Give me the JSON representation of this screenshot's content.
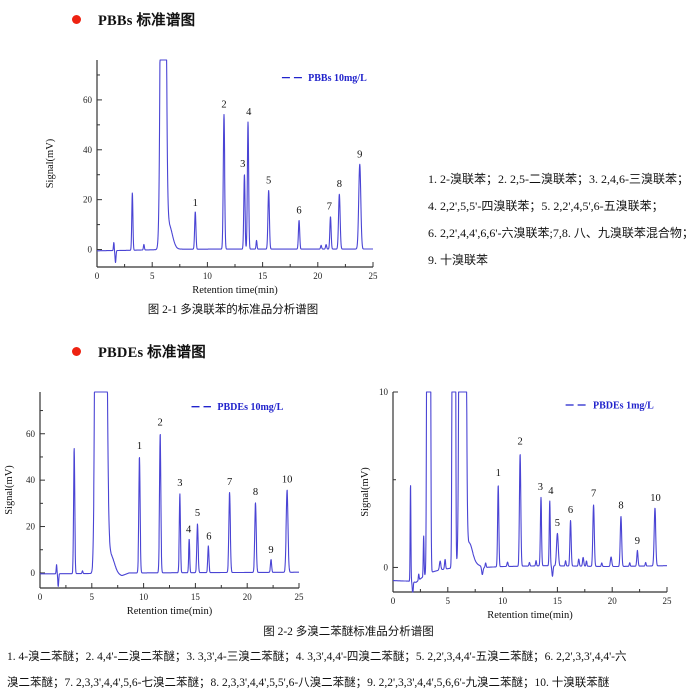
{
  "colors": {
    "bullet": "#ee2211",
    "trace": "#4a44d4",
    "legend_text": "#2123cc",
    "axis": "#333333",
    "tick_text": "#222222",
    "peak_label": "#111111"
  },
  "sections": [
    {
      "title": "PBBs 标准谱图"
    },
    {
      "title": "PBDEs 标准谱图"
    }
  ],
  "annotation": {
    "lines": [
      "1. 2-溴联苯；2. 2,5-二溴联苯；3. 2,4,6-三溴联苯；",
      "4. 2,2',5,5'-四溴联苯；5. 2,2',4,5',6-五溴联苯；",
      "6. 2,2',4,4',6,6'-六溴联苯;7,8. 八、九溴联苯混合物；",
      "9. 十溴联苯"
    ]
  },
  "captions": {
    "fig1": "图 2-1  多溴联苯的标准品分析谱图",
    "fig2": "图 2-2  多溴二苯醚标准品分析谱图"
  },
  "footnote": {
    "lines": [
      "1. 4-溴二苯醚；2. 4,4'-二溴二苯醚；3. 3,3',4-三溴二苯醚；4. 3,3',4,4'-四溴二苯醚；5. 2,2',3,4,4'-五溴二苯醚；6. 2,2',3,3',4,4'-六",
      "溴二苯醚；7. 2,3,3',4,4',5,6-七溴二苯醚；8. 2,3,3',4,4',5,5',6-八溴二苯醚；9. 2,2',3,3',4,4',5,6,6'-九溴二苯醚；10. 十溴联苯醚"
    ]
  },
  "chart_data": [
    {
      "type": "line",
      "legend": "PBBs 10mg/L",
      "xlabel": "Retention time(min)",
      "ylabel": "Signal(mV)",
      "xlim": [
        0,
        25
      ],
      "ylim": [
        -7,
        76
      ],
      "xticks": [
        0,
        5,
        10,
        15,
        20,
        25
      ],
      "yticks": [
        0,
        20,
        40,
        60
      ],
      "x_minor_step": 2.5,
      "y_minor_step": 10,
      "grid": false,
      "legend_position": "top-right-inside",
      "baseline_pts": [
        [
          0,
          -0.5
        ],
        [
          3,
          -0.3
        ],
        [
          7.5,
          0.15
        ],
        [
          25,
          0.2
        ]
      ],
      "peaks": [
        [
          1.52,
          3.2,
          0.05
        ],
        [
          1.68,
          -4.8,
          0.06
        ],
        [
          3.2,
          23,
          0.07
        ],
        [
          4.25,
          2.2,
          0.06
        ],
        [
          6,
          500,
          0.22
        ],
        [
          6.5,
          10,
          0.45
        ],
        [
          8.9,
          15,
          0.08
        ],
        [
          11.5,
          54,
          0.09
        ],
        [
          13.35,
          30,
          0.08
        ],
        [
          13.68,
          51,
          0.08
        ],
        [
          14.45,
          3.5,
          0.06
        ],
        [
          15.55,
          23.5,
          0.09
        ],
        [
          18.3,
          11.5,
          0.08
        ],
        [
          20.3,
          1.5,
          0.07
        ],
        [
          20.75,
          1.8,
          0.07
        ],
        [
          21.15,
          13,
          0.08
        ],
        [
          21.95,
          22,
          0.1
        ],
        [
          23.8,
          34,
          0.13
        ]
      ],
      "peak_labels": [
        [
          "1",
          8.9,
          17.5
        ],
        [
          "2",
          11.5,
          57
        ],
        [
          "3",
          13.2,
          33
        ],
        [
          "4",
          13.75,
          54
        ],
        [
          "5",
          15.55,
          26.5
        ],
        [
          "6",
          18.3,
          14.5
        ],
        [
          "7",
          21.05,
          16
        ],
        [
          "8",
          21.95,
          25
        ],
        [
          "9",
          23.8,
          37
        ]
      ],
      "legend_layout": {
        "dash": [
          0.67,
          0.745
        ],
        "text_x": 0.765,
        "y_frac": 0.085
      }
    },
    {
      "type": "line",
      "legend": "PBDEs 10mg/L",
      "xlabel": "Retention time(min)",
      "ylabel": "Signal(mV)",
      "xlim": [
        0,
        25
      ],
      "ylim": [
        -6.5,
        78
      ],
      "xticks": [
        0,
        5,
        10,
        15,
        20,
        25
      ],
      "yticks": [
        0,
        20,
        40,
        60
      ],
      "x_minor_step": 2.5,
      "y_minor_step": 10,
      "grid": false,
      "legend_position": "top-right-inside",
      "baseline_pts": [
        [
          0,
          -0.4
        ],
        [
          7.2,
          -0.2
        ],
        [
          7.9,
          -1.2
        ],
        [
          8.6,
          0
        ],
        [
          25,
          0.3
        ]
      ],
      "peaks": [
        [
          1.6,
          4,
          0.05
        ],
        [
          1.76,
          -5.5,
          0.06
        ],
        [
          3.3,
          54,
          0.08
        ],
        [
          4.1,
          1.2,
          0.06
        ],
        [
          5.55,
          500,
          0.22
        ],
        [
          6.1,
          500,
          0.3
        ],
        [
          6.8,
          8,
          0.5
        ],
        [
          9.6,
          50,
          0.09
        ],
        [
          11.6,
          60,
          0.09
        ],
        [
          13.5,
          34,
          0.08
        ],
        [
          14.4,
          14.5,
          0.07
        ],
        [
          15.2,
          21,
          0.09
        ],
        [
          16.25,
          11.5,
          0.08
        ],
        [
          18.3,
          34.5,
          0.1
        ],
        [
          20.8,
          30,
          0.1
        ],
        [
          22.3,
          5.5,
          0.08
        ],
        [
          23.85,
          35.5,
          0.12
        ]
      ],
      "peak_labels": [
        [
          "1",
          9.6,
          53.5
        ],
        [
          "2",
          11.6,
          63.5
        ],
        [
          "3",
          13.5,
          37.5
        ],
        [
          "4",
          14.35,
          17.5
        ],
        [
          "5",
          15.2,
          24.5
        ],
        [
          "6",
          16.3,
          14.5
        ],
        [
          "7",
          18.3,
          38
        ],
        [
          "8",
          20.8,
          33.5
        ],
        [
          "9",
          22.3,
          8.5
        ],
        [
          "10",
          23.85,
          39
        ]
      ],
      "legend_layout": {
        "dash": [
          0.585,
          0.66
        ],
        "text_x": 0.685,
        "y_frac": 0.075
      }
    },
    {
      "type": "line",
      "legend": "PBDEs 1mg/L",
      "xlabel": "Retention time(min)",
      "ylabel": "Signal(mV)",
      "xlim": [
        0,
        25
      ],
      "ylim": [
        -1.4,
        10
      ],
      "xticks": [
        0,
        5,
        10,
        15,
        20,
        25
      ],
      "yticks": [
        0,
        10
      ],
      "x_minor_step": 2.5,
      "y_minor_step": 5,
      "grid": false,
      "legend_position": "top-right-inside",
      "baseline_pts": [
        [
          0,
          -0.75
        ],
        [
          1.4,
          -0.78
        ],
        [
          2.1,
          -0.85
        ],
        [
          2.7,
          -0.55
        ],
        [
          3.1,
          -0.35
        ],
        [
          4.2,
          -0.15
        ],
        [
          5.2,
          -0.05
        ],
        [
          7.4,
          0.25
        ],
        [
          8.3,
          0
        ],
        [
          10,
          0.05
        ],
        [
          14,
          0.1
        ],
        [
          20,
          0.05
        ],
        [
          25,
          0.1
        ]
      ],
      "peaks": [
        [
          1.6,
          5.6,
          0.045
        ],
        [
          1.8,
          -0.7,
          0.06
        ],
        [
          2.35,
          0.35,
          0.05
        ],
        [
          2.8,
          2.3,
          0.05
        ],
        [
          3.25,
          300,
          0.11
        ],
        [
          4.3,
          0.5,
          0.09
        ],
        [
          4.75,
          0.55,
          0.07
        ],
        [
          5.55,
          300,
          0.1
        ],
        [
          6.35,
          300,
          0.2
        ],
        [
          6.95,
          1.2,
          0.4
        ],
        [
          8.15,
          -0.45,
          0.09
        ],
        [
          8.45,
          0.25,
          0.06
        ],
        [
          9.6,
          4.65,
          0.075
        ],
        [
          10.45,
          0.25,
          0.07
        ],
        [
          11.6,
          6.4,
          0.085
        ],
        [
          12.45,
          0.2,
          0.06
        ],
        [
          13.05,
          0.3,
          0.06
        ],
        [
          13.5,
          3.9,
          0.075
        ],
        [
          14.3,
          3.7,
          0.065
        ],
        [
          14.55,
          -0.6,
          0.07
        ],
        [
          15.0,
          1.85,
          0.11
        ],
        [
          15.75,
          0.3,
          0.06
        ],
        [
          16.2,
          2.6,
          0.08
        ],
        [
          16.95,
          0.4,
          0.07
        ],
        [
          17.35,
          0.5,
          0.08
        ],
        [
          17.65,
          0.3,
          0.06
        ],
        [
          18.3,
          3.5,
          0.09
        ],
        [
          19.05,
          0.2,
          0.06
        ],
        [
          19.9,
          0.55,
          0.09
        ],
        [
          20.8,
          2.85,
          0.09
        ],
        [
          21.6,
          0.2,
          0.06
        ],
        [
          22.3,
          0.9,
          0.08
        ],
        [
          23.05,
          0.2,
          0.06
        ],
        [
          23.9,
          3.3,
          0.1
        ]
      ],
      "peak_labels": [
        [
          "1",
          9.6,
          5.2
        ],
        [
          "2",
          11.6,
          7.0
        ],
        [
          "3",
          13.45,
          4.4
        ],
        [
          "4",
          14.4,
          4.2
        ],
        [
          "5",
          15.0,
          2.35
        ],
        [
          "6",
          16.2,
          3.1
        ],
        [
          "7",
          18.3,
          4.05
        ],
        [
          "8",
          20.8,
          3.35
        ],
        [
          "9",
          22.3,
          1.35
        ],
        [
          "10",
          23.95,
          3.8
        ]
      ],
      "legend_layout": {
        "dash": [
          0.63,
          0.705
        ],
        "text_x": 0.73,
        "y_frac": 0.065
      }
    }
  ]
}
